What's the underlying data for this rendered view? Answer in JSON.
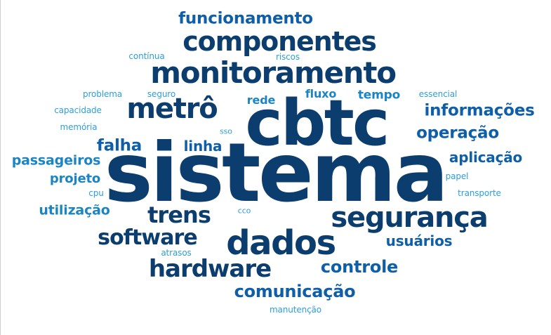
{
  "words": [
    {
      "text": "sistema",
      "tone": "dark"
    },
    {
      "text": "cbtc",
      "tone": "dark"
    },
    {
      "text": "monitoramento",
      "tone": "dark"
    },
    {
      "text": "componentes",
      "tone": "dark"
    },
    {
      "text": "dados",
      "tone": "dark"
    },
    {
      "text": "metrô",
      "tone": "dark"
    },
    {
      "text": "segurança",
      "tone": "dark"
    },
    {
      "text": "hardware",
      "tone": "dark"
    },
    {
      "text": "trens",
      "tone": "dark"
    },
    {
      "text": "software",
      "tone": "dark"
    },
    {
      "text": "funcionamento",
      "tone": "mid"
    },
    {
      "text": "comunicação",
      "tone": "mid"
    },
    {
      "text": "controle",
      "tone": "mid"
    },
    {
      "text": "informações",
      "tone": "mid"
    },
    {
      "text": "operação",
      "tone": "mid"
    },
    {
      "text": "falha",
      "tone": "mid"
    },
    {
      "text": "linha",
      "tone": "mid"
    },
    {
      "text": "aplicação",
      "tone": "mid"
    },
    {
      "text": "usuários",
      "tone": "mid"
    },
    {
      "text": "passageiros",
      "tone": "light"
    },
    {
      "text": "utilização",
      "tone": "light"
    },
    {
      "text": "projeto",
      "tone": "light"
    },
    {
      "text": "tempo",
      "tone": "light"
    },
    {
      "text": "fluxo",
      "tone": "light"
    },
    {
      "text": "rede",
      "tone": "light"
    },
    {
      "text": "contínua",
      "tone": "tiny"
    },
    {
      "text": "riscos",
      "tone": "tiny"
    },
    {
      "text": "problema",
      "tone": "tiny"
    },
    {
      "text": "seguro",
      "tone": "tiny"
    },
    {
      "text": "essencial",
      "tone": "tiny"
    },
    {
      "text": "capacidade",
      "tone": "tiny"
    },
    {
      "text": "memória",
      "tone": "tiny"
    },
    {
      "text": "sso",
      "tone": "tiny"
    },
    {
      "text": "papel",
      "tone": "tiny"
    },
    {
      "text": "transporte",
      "tone": "tiny"
    },
    {
      "text": "cpu",
      "tone": "tiny"
    },
    {
      "text": "cco",
      "tone": "tiny"
    },
    {
      "text": "atrasos",
      "tone": "tiny"
    },
    {
      "text": "manutenção",
      "tone": "tiny"
    }
  ],
  "colors": {
    "dark": "#0b3d6e",
    "mid": "#0f5ea8",
    "light": "#1b85c4",
    "tiny": "#2d9fd8"
  }
}
